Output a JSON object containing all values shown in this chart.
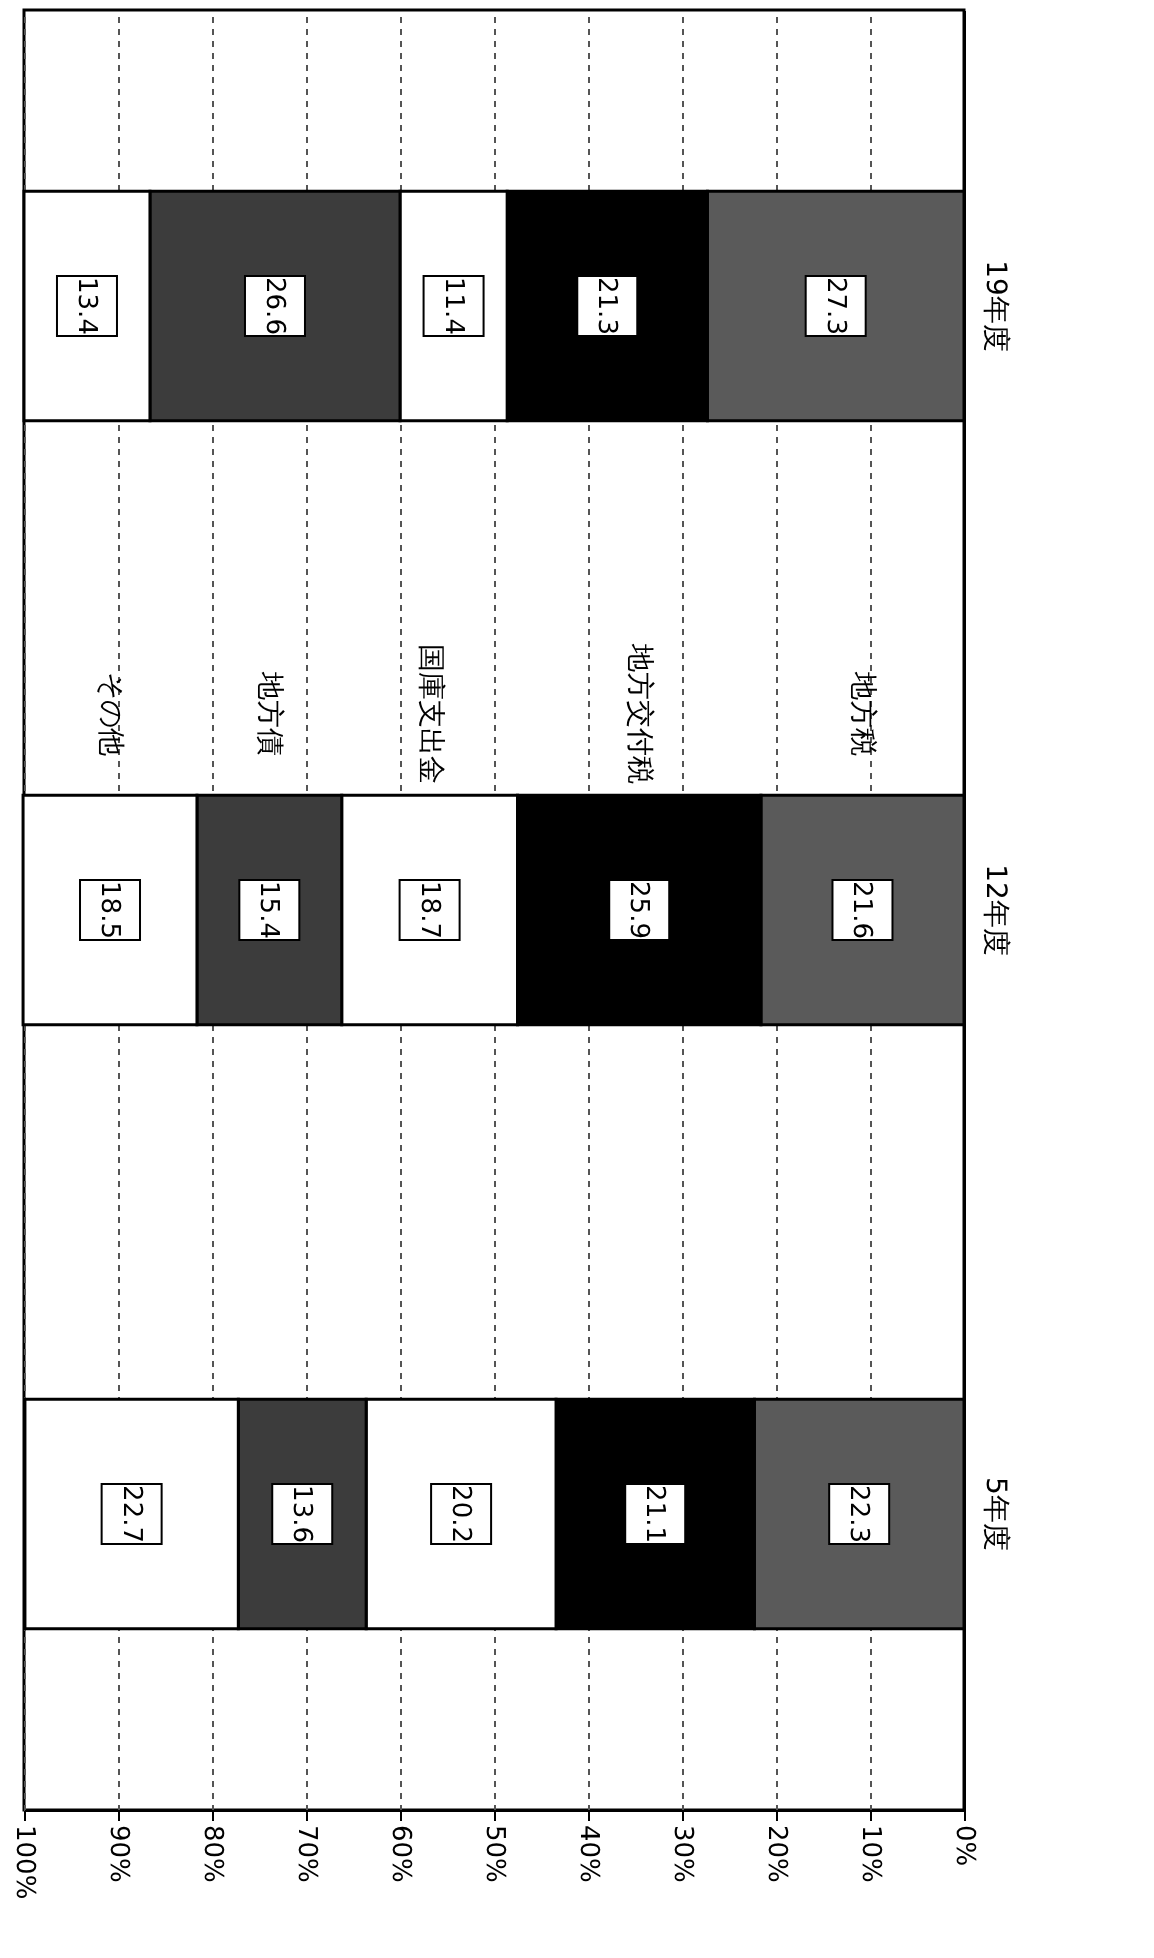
{
  "chart_data": {
    "type": "bar",
    "orientation": "horizontal",
    "stacked": true,
    "data_labels": true,
    "legend": false,
    "grid": "x",
    "categories": [
      "19年度",
      "12年度",
      "5年度"
    ],
    "series": [
      {
        "name": "地方税",
        "color": "#5a5a5a",
        "values": [
          27.3,
          21.6,
          22.3
        ]
      },
      {
        "name": "地方交付税",
        "color": "#000000",
        "values": [
          21.3,
          25.9,
          21.1
        ]
      },
      {
        "name": "国庫支出金",
        "color": "#ffffff",
        "values": [
          11.4,
          18.7,
          20.2
        ]
      },
      {
        "name": "地方債",
        "color": "#3c3c3c",
        "values": [
          26.6,
          15.4,
          13.6
        ]
      },
      {
        "name": "その他",
        "color": "#ffffff",
        "values": [
          13.4,
          18.5,
          22.7
        ]
      }
    ],
    "xlim": [
      100,
      0
    ],
    "xticks": [
      {
        "value": 100,
        "label": "100%"
      },
      {
        "value": 90,
        "label": "90%"
      },
      {
        "value": 80,
        "label": "80%"
      },
      {
        "value": 70,
        "label": "70%"
      },
      {
        "value": 60,
        "label": "60%"
      },
      {
        "value": 50,
        "label": "50%"
      },
      {
        "value": 40,
        "label": "40%"
      },
      {
        "value": 30,
        "label": "30%"
      },
      {
        "value": 20,
        "label": "20%"
      },
      {
        "value": 10,
        "label": "10%"
      },
      {
        "value": 0,
        "label": "0%"
      }
    ]
  }
}
